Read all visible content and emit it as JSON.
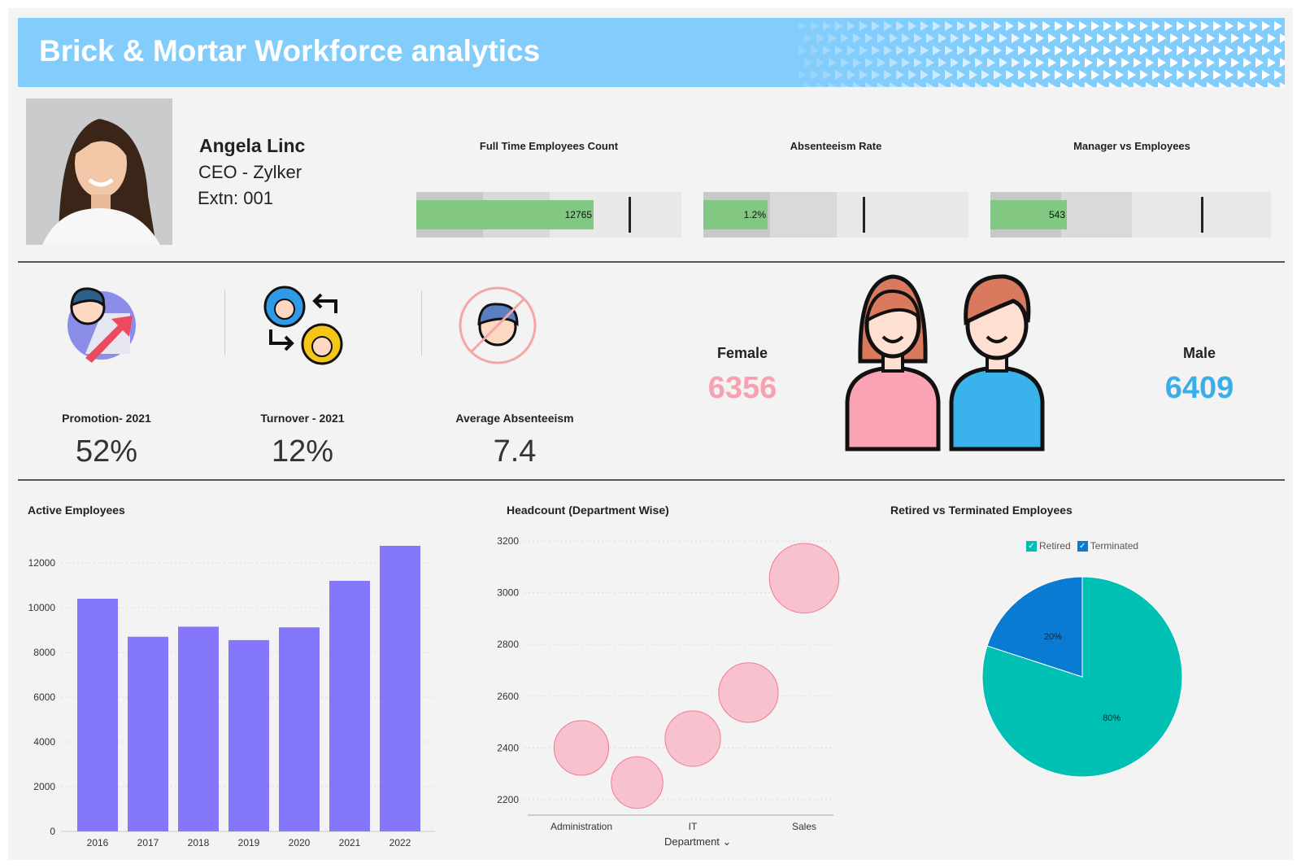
{
  "header": {
    "title": "Brick & Mortar Workforce analytics",
    "color": "#82cdfc"
  },
  "profile": {
    "name": "Angela Linc",
    "role": "CEO - Zylker",
    "extension": "Extn: 001"
  },
  "bullets": [
    {
      "title": "Full Time Employees Count",
      "value": "12765"
    },
    {
      "title": "Absenteeism Rate",
      "value": "1.2%"
    },
    {
      "title": "Manager vs Employees",
      "value": "543"
    }
  ],
  "kpis": [
    {
      "label": "Promotion- 2021",
      "value": "52%",
      "icon": "promotion-icon"
    },
    {
      "label": "Turnover - 2021",
      "value": "12%",
      "icon": "turnover-icon"
    },
    {
      "label": "Average Absenteeism",
      "value": "7.4",
      "icon": "no-absent-icon"
    }
  ],
  "gender": {
    "female": {
      "label": "Female",
      "value": "6356",
      "color": "#f7a1b1"
    },
    "male": {
      "label": "Male",
      "value": "6409",
      "color": "#3aaee8"
    }
  },
  "chart_data": [
    {
      "type": "bar",
      "title": "Active Employees",
      "categories": [
        "2016",
        "2017",
        "2018",
        "2019",
        "2020",
        "2021",
        "2022"
      ],
      "values": [
        10400,
        8700,
        9150,
        8550,
        9120,
        11200,
        12765
      ],
      "ylim": [
        0,
        12000
      ],
      "yticks": [
        0,
        2000,
        4000,
        6000,
        8000,
        10000,
        12000
      ],
      "grid": true,
      "color": "#8477fb"
    },
    {
      "type": "scatter",
      "title": "Headcount (Department Wise)",
      "xlabel": "Department",
      "x_tick_labels": [
        "Administration",
        "IT",
        "Sales"
      ],
      "points": [
        {
          "category": "Administration",
          "y": 2400
        },
        {
          "category": "",
          "y": 2266
        },
        {
          "category": "IT",
          "y": 2436
        },
        {
          "category": "",
          "y": 2614
        },
        {
          "category": "Sales",
          "y": 3056
        }
      ],
      "ylim": [
        2200,
        3200
      ],
      "yticks": [
        2200,
        2400,
        2600,
        2800,
        3000,
        3200
      ],
      "grid": true,
      "color": "#f7bfcb"
    },
    {
      "type": "pie",
      "title": "Retired vs Terminated Employees",
      "legend": "top",
      "series": [
        {
          "name": "Retired",
          "value": 80,
          "label": "80%",
          "color": "#00bfb3"
        },
        {
          "name": "Terminated",
          "value": 20,
          "label": "20%",
          "color": "#0a7bd3"
        }
      ]
    }
  ]
}
